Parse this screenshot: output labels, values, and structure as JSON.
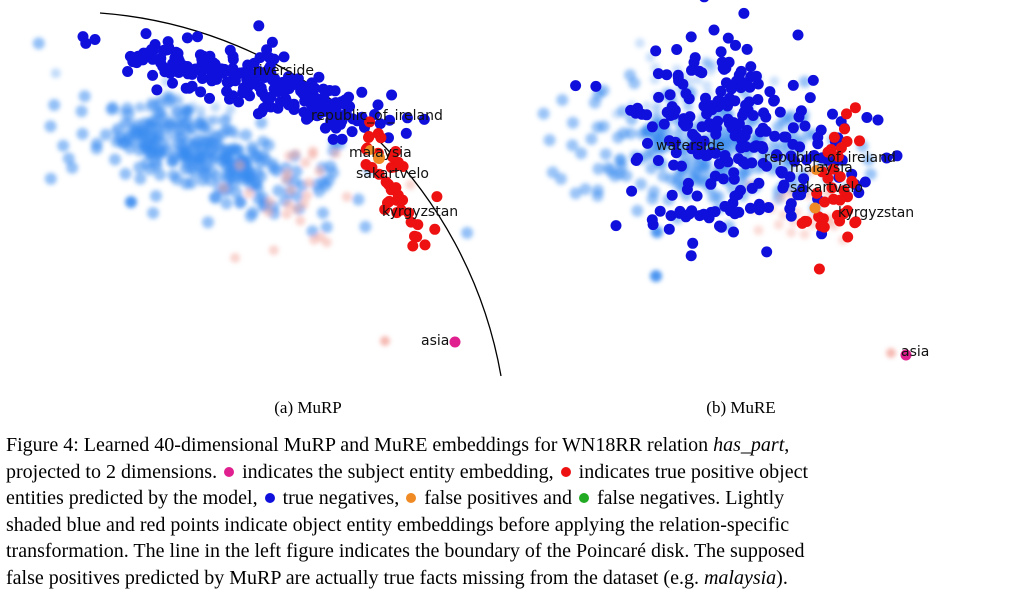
{
  "colors": {
    "subject": "#e0208f",
    "true_positive": "#ee1111",
    "true_negative": "#1010dd",
    "false_positive": "#f08a24",
    "false_negative": "#22aa22",
    "shaded_blue": "#3a8cf0",
    "shaded_red": "#f4a9a0"
  },
  "panels": {
    "murp": {
      "caption": "(a) MuRP",
      "labels": [
        "riverside",
        "republic_of_ireland",
        "malaysia",
        "sakartvelo",
        "kyrgyzstan",
        "asia"
      ]
    },
    "mure": {
      "caption": "(b) MuRE",
      "labels": [
        "waterside",
        "republic_of_ireland",
        "malaysia",
        "sakartvelo",
        "kyrgyzstan",
        "asia"
      ]
    }
  },
  "caption": {
    "l1a": "Figure 4: Learned 40-dimensional MuRP and MuRE embeddings for WN18RR relation ",
    "l1b": "has_part",
    "l1c": ",",
    "l2a": "projected to 2 dimensions. ",
    "l2b": " indicates the subject entity embedding, ",
    "l2c": " indicates true positive object",
    "l3a": "entities predicted by the model, ",
    "l3b": " true negatives, ",
    "l3c": " false positives and ",
    "l3d": " false negatives. Lightly",
    "l4": "shaded blue and red points indicate object entity embeddings before applying the relation-specific",
    "l5": "transformation. The line in the left figure indicates the boundary of the Poincaré disk. The supposed",
    "l6a": "false positives predicted by MuRP are actually true facts missing from the dataset (e.g. ",
    "l6b": "malaysia",
    "l6c": ")."
  }
}
